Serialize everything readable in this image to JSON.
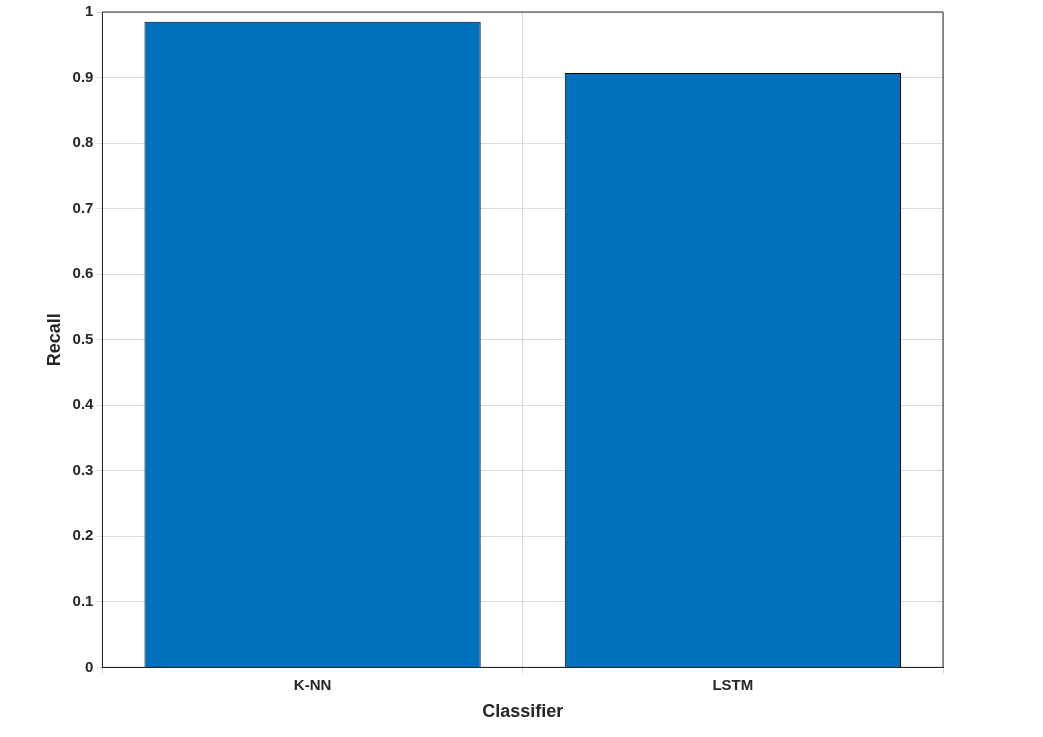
{
  "chart_data": {
    "type": "bar",
    "xlabel": "Classifier",
    "ylabel": "Recall",
    "categories": [
      "K-NN",
      "LSTM"
    ],
    "values": [
      0.985,
      0.907
    ],
    "color": "#0072bd",
    "ylim": [
      0,
      1
    ],
    "yticks": [
      0,
      0.1,
      0.2,
      0.3,
      0.4,
      0.5,
      0.6,
      0.7,
      0.8,
      0.9,
      1
    ],
    "grid": true
  }
}
